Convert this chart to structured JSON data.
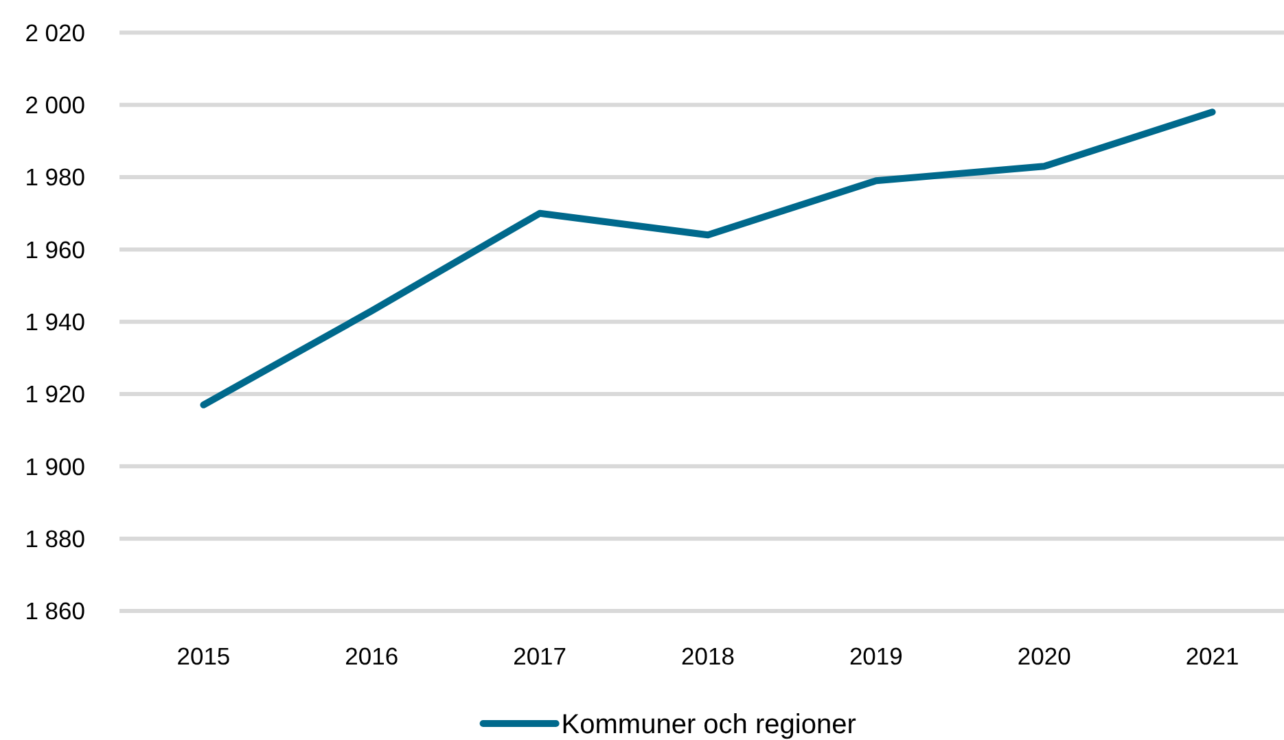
{
  "chart_data": {
    "type": "line",
    "categories": [
      "2015",
      "2016",
      "2017",
      "2018",
      "2019",
      "2020",
      "2021"
    ],
    "series": [
      {
        "name": "Kommuner och regioner",
        "color": "#00698c",
        "values": [
          1917,
          1943,
          1970,
          1964,
          1979,
          1983,
          1998
        ]
      }
    ],
    "ylim": [
      1860,
      2020
    ],
    "yticks": [
      {
        "value": 1860,
        "label": "1 860"
      },
      {
        "value": 1880,
        "label": "1 880"
      },
      {
        "value": 1900,
        "label": "1 900"
      },
      {
        "value": 1920,
        "label": "1 920"
      },
      {
        "value": 1940,
        "label": "1 940"
      },
      {
        "value": 1960,
        "label": "1 960"
      },
      {
        "value": 1980,
        "label": "1 980"
      },
      {
        "value": 2000,
        "label": "2 000"
      },
      {
        "value": 2020,
        "label": "2 020"
      }
    ],
    "grid": "y",
    "legend": "bottom",
    "marker": "none",
    "line_style": "solid"
  }
}
